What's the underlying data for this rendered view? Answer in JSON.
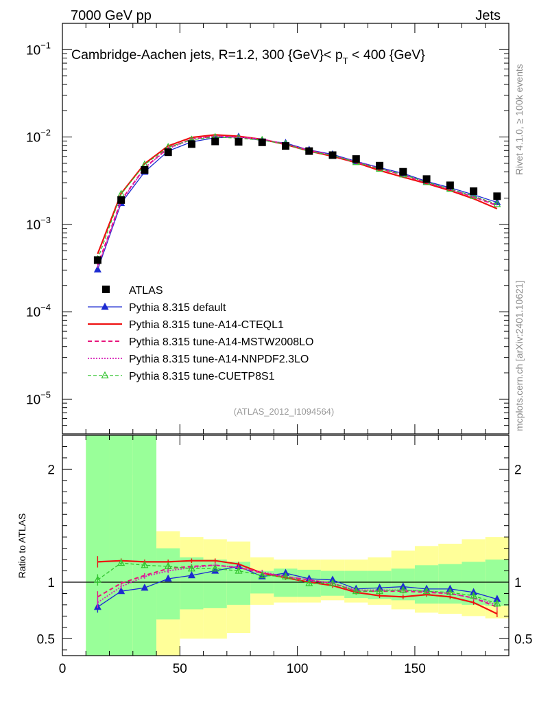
{
  "header": {
    "left": "7000 GeV pp",
    "right": "Jets"
  },
  "side": {
    "top": "Rivet 4.1.0, ≥ 100k events",
    "bottom": "mcplots.cern.ch [arXiv:2401.10621]"
  },
  "chart_data": {
    "type": "line",
    "title": "Cambridge-Aachen jets, R=1.2, 300 {GeV}< p",
    "title_sub": "T",
    "title_tail": " < 400 {GeV}",
    "watermark": "(ATLAS_2012_I1094564)",
    "xlabel": "",
    "ylabel_main": "",
    "ylabel_ratio": "Ratio to ATLAS",
    "xlim": [
      0,
      190
    ],
    "ylim_main": [
      4e-06,
      0.2
    ],
    "ylim_ratio": [
      0.35,
      2.3
    ],
    "x_ticks": [
      "0",
      "50",
      "100",
      "150"
    ],
    "x_tick_values": [
      0,
      50,
      100,
      150
    ],
    "y_ticks_main": [
      {
        "value": 0.1,
        "base": "10",
        "exp": "−1"
      },
      {
        "value": 0.01,
        "base": "10",
        "exp": "−2"
      },
      {
        "value": 0.001,
        "base": "10",
        "exp": "−3"
      },
      {
        "value": 0.0001,
        "base": "10",
        "exp": "−4"
      },
      {
        "value": 1e-05,
        "base": "10",
        "exp": "−5"
      }
    ],
    "y_ticks_ratio": [
      {
        "value": 2,
        "label": "2"
      },
      {
        "value": 1,
        "label": "1"
      },
      {
        "value": 0.5,
        "label": "0.5"
      }
    ],
    "x": [
      15,
      25,
      35,
      45,
      55,
      65,
      75,
      85,
      95,
      105,
      115,
      125,
      135,
      145,
      155,
      165,
      175,
      185
    ],
    "bin_edges": [
      10,
      20,
      30,
      40,
      50,
      60,
      70,
      80,
      90,
      100,
      110,
      120,
      130,
      140,
      150,
      160,
      170,
      180,
      190
    ],
    "data_series": {
      "name": "ATLAS",
      "values": [
        0.00039,
        0.0019,
        0.0042,
        0.0067,
        0.0083,
        0.0089,
        0.0088,
        0.0087,
        0.0079,
        0.0069,
        0.0062,
        0.0056,
        0.0047,
        0.004,
        0.0033,
        0.0028,
        0.0024,
        0.0021
      ]
    },
    "band_green": [
      [
        0.35,
        2.3
      ],
      [
        0.35,
        2.3
      ],
      [
        0.35,
        2.3
      ],
      [
        0.67,
        1.3
      ],
      [
        0.76,
        1.22
      ],
      [
        0.77,
        1.2
      ],
      [
        0.8,
        1.18
      ],
      [
        0.9,
        1.1
      ],
      [
        0.87,
        1.12
      ],
      [
        0.87,
        1.11
      ],
      [
        0.88,
        1.1
      ],
      [
        0.86,
        1.1
      ],
      [
        0.85,
        1.1
      ],
      [
        0.84,
        1.12
      ],
      [
        0.81,
        1.15
      ],
      [
        0.81,
        1.16
      ],
      [
        0.8,
        1.18
      ],
      [
        0.79,
        1.2
      ],
      [
        0.78,
        1.22
      ]
    ],
    "band_yellow": [
      [
        0.35,
        2.3
      ],
      [
        0.35,
        2.3
      ],
      [
        0.35,
        1.95
      ],
      [
        0.35,
        1.45
      ],
      [
        0.5,
        1.4
      ],
      [
        0.5,
        1.38
      ],
      [
        0.55,
        1.36
      ],
      [
        0.8,
        1.22
      ],
      [
        0.82,
        1.2
      ],
      [
        0.82,
        1.2
      ],
      [
        0.84,
        1.2
      ],
      [
        0.82,
        1.2
      ],
      [
        0.8,
        1.22
      ],
      [
        0.76,
        1.28
      ],
      [
        0.73,
        1.32
      ],
      [
        0.72,
        1.34
      ],
      [
        0.7,
        1.38
      ],
      [
        0.68,
        1.4
      ],
      [
        0.66,
        1.45
      ]
    ],
    "series": [
      {
        "name": "Pythia 8.315 default",
        "color": "#1c2bd1",
        "dash": "",
        "width": 1.3,
        "marker": "triangle-filled",
        "ratio": [
          0.78,
          0.92,
          0.95,
          1.03,
          1.06,
          1.1,
          1.14,
          1.05,
          1.08,
          1.03,
          1.02,
          0.94,
          0.95,
          0.96,
          0.94,
          0.94,
          0.91,
          0.85
        ]
      },
      {
        "name": "Pythia 8.315 tune-A14-CTEQL1",
        "color": "#ee1111",
        "dash": "",
        "width": 2.2,
        "marker": "none",
        "ratio": [
          1.18,
          1.19,
          1.18,
          1.18,
          1.19,
          1.19,
          1.16,
          1.08,
          1.04,
          1.0,
          0.97,
          0.91,
          0.88,
          0.87,
          0.89,
          0.87,
          0.82,
          0.72
        ]
      },
      {
        "name": "Pythia 8.315 tune-A14-MSTW2008LO",
        "color": "#e8137b",
        "dash": "6,4",
        "width": 2.0,
        "marker": "none",
        "ratio": [
          0.87,
          0.99,
          1.06,
          1.12,
          1.14,
          1.15,
          1.13,
          1.08,
          1.05,
          1.02,
          0.99,
          0.92,
          0.92,
          0.92,
          0.91,
          0.9,
          0.86,
          0.78
        ]
      },
      {
        "name": "Pythia 8.315 tune-A14-NNPDF2.3LO",
        "color": "#d61fb7",
        "dash": "2,2",
        "width": 1.8,
        "marker": "none",
        "ratio": [
          0.82,
          0.96,
          1.05,
          1.1,
          1.13,
          1.15,
          1.13,
          1.09,
          1.05,
          1.02,
          0.99,
          0.93,
          0.93,
          0.93,
          0.92,
          0.9,
          0.86,
          0.8
        ]
      },
      {
        "name": "Pythia 8.315 tune-CUETP8S1",
        "color": "#31c42e",
        "dash": "5,3",
        "width": 1.3,
        "marker": "triangle-open",
        "ratio": [
          1.02,
          1.17,
          1.15,
          1.14,
          1.12,
          1.12,
          1.1,
          1.06,
          1.05,
          0.99,
          0.99,
          0.92,
          0.92,
          0.93,
          0.92,
          0.91,
          0.88,
          0.81
        ]
      }
    ]
  }
}
